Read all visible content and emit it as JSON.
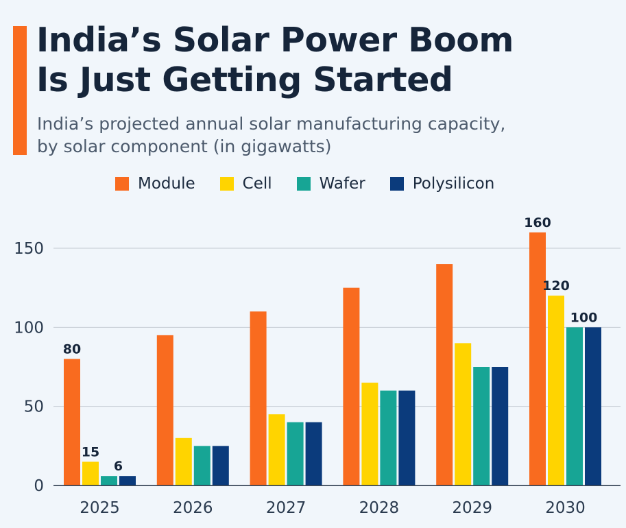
{
  "header": {
    "title_line1": "India’s Solar Power Boom",
    "title_line2": "Is Just Getting Started",
    "subtitle_line1": "India’s projected annual solar manufacturing capacity,",
    "subtitle_line2": "by solar component (in gigawatts)",
    "accent_color": "#f96b1f"
  },
  "chart_data": {
    "type": "bar",
    "title": "India’s Solar Power Boom Is Just Getting Started",
    "subtitle": "India’s projected annual solar manufacturing capacity, by solar component (in gigawatts)",
    "categories": [
      "2025",
      "2026",
      "2027",
      "2028",
      "2029",
      "2030"
    ],
    "series": [
      {
        "name": "Module",
        "color": "#f96b1f",
        "values": [
          80,
          95,
          110,
          125,
          140,
          160
        ]
      },
      {
        "name": "Cell",
        "color": "#ffd400",
        "values": [
          15,
          30,
          45,
          65,
          90,
          120
        ]
      },
      {
        "name": "Wafer",
        "color": "#17a595",
        "values": [
          6,
          25,
          40,
          60,
          75,
          100
        ]
      },
      {
        "name": "Polysilicon",
        "color": "#0b3b7c",
        "values": [
          6,
          25,
          40,
          60,
          75,
          100
        ]
      }
    ],
    "data_labels": [
      {
        "category": "2025",
        "series": [
          "Module"
        ],
        "text": "80"
      },
      {
        "category": "2025",
        "series": [
          "Cell"
        ],
        "text": "15"
      },
      {
        "category": "2025",
        "series": [
          "Wafer",
          "Polysilicon"
        ],
        "text": "6"
      },
      {
        "category": "2030",
        "series": [
          "Module"
        ],
        "text": "160"
      },
      {
        "category": "2030",
        "series": [
          "Cell"
        ],
        "text": "120"
      },
      {
        "category": "2030",
        "series": [
          "Wafer",
          "Polysilicon"
        ],
        "text": "100"
      }
    ],
    "yticks": [
      "0",
      "50",
      "100",
      "150"
    ],
    "ytick_values": [
      0,
      50,
      100,
      150
    ],
    "ylim": [
      0,
      150
    ],
    "xlabel": "",
    "ylabel": "",
    "grid": true,
    "legend": "top"
  }
}
